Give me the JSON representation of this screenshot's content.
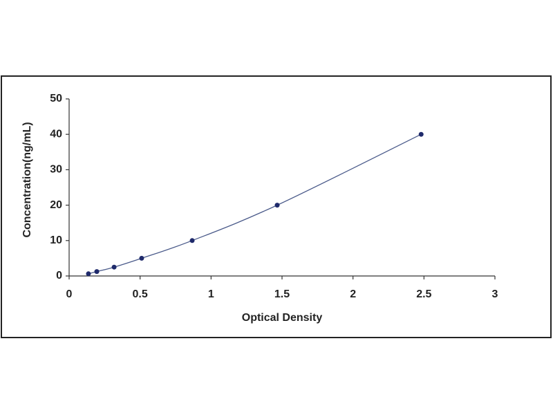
{
  "chart_data": {
    "type": "scatter",
    "x_label": "Optical Density",
    "y_label": "Concentration(ng/mL)",
    "x": [
      0.136,
      0.195,
      0.317,
      0.511,
      0.867,
      1.466,
      2.48
    ],
    "values": [
      0.625,
      1.25,
      2.5,
      5,
      10,
      20,
      40
    ],
    "color": "#1f2a6b",
    "line": true,
    "line_color": "#4a5a8a",
    "xlim": [
      0,
      3
    ],
    "xticks": [
      0,
      0.5,
      1,
      1.5,
      2,
      2.5,
      3
    ],
    "ylim": [
      0,
      50
    ],
    "yticks": [
      0,
      10,
      20,
      30,
      40,
      50
    ],
    "grid": false
  }
}
